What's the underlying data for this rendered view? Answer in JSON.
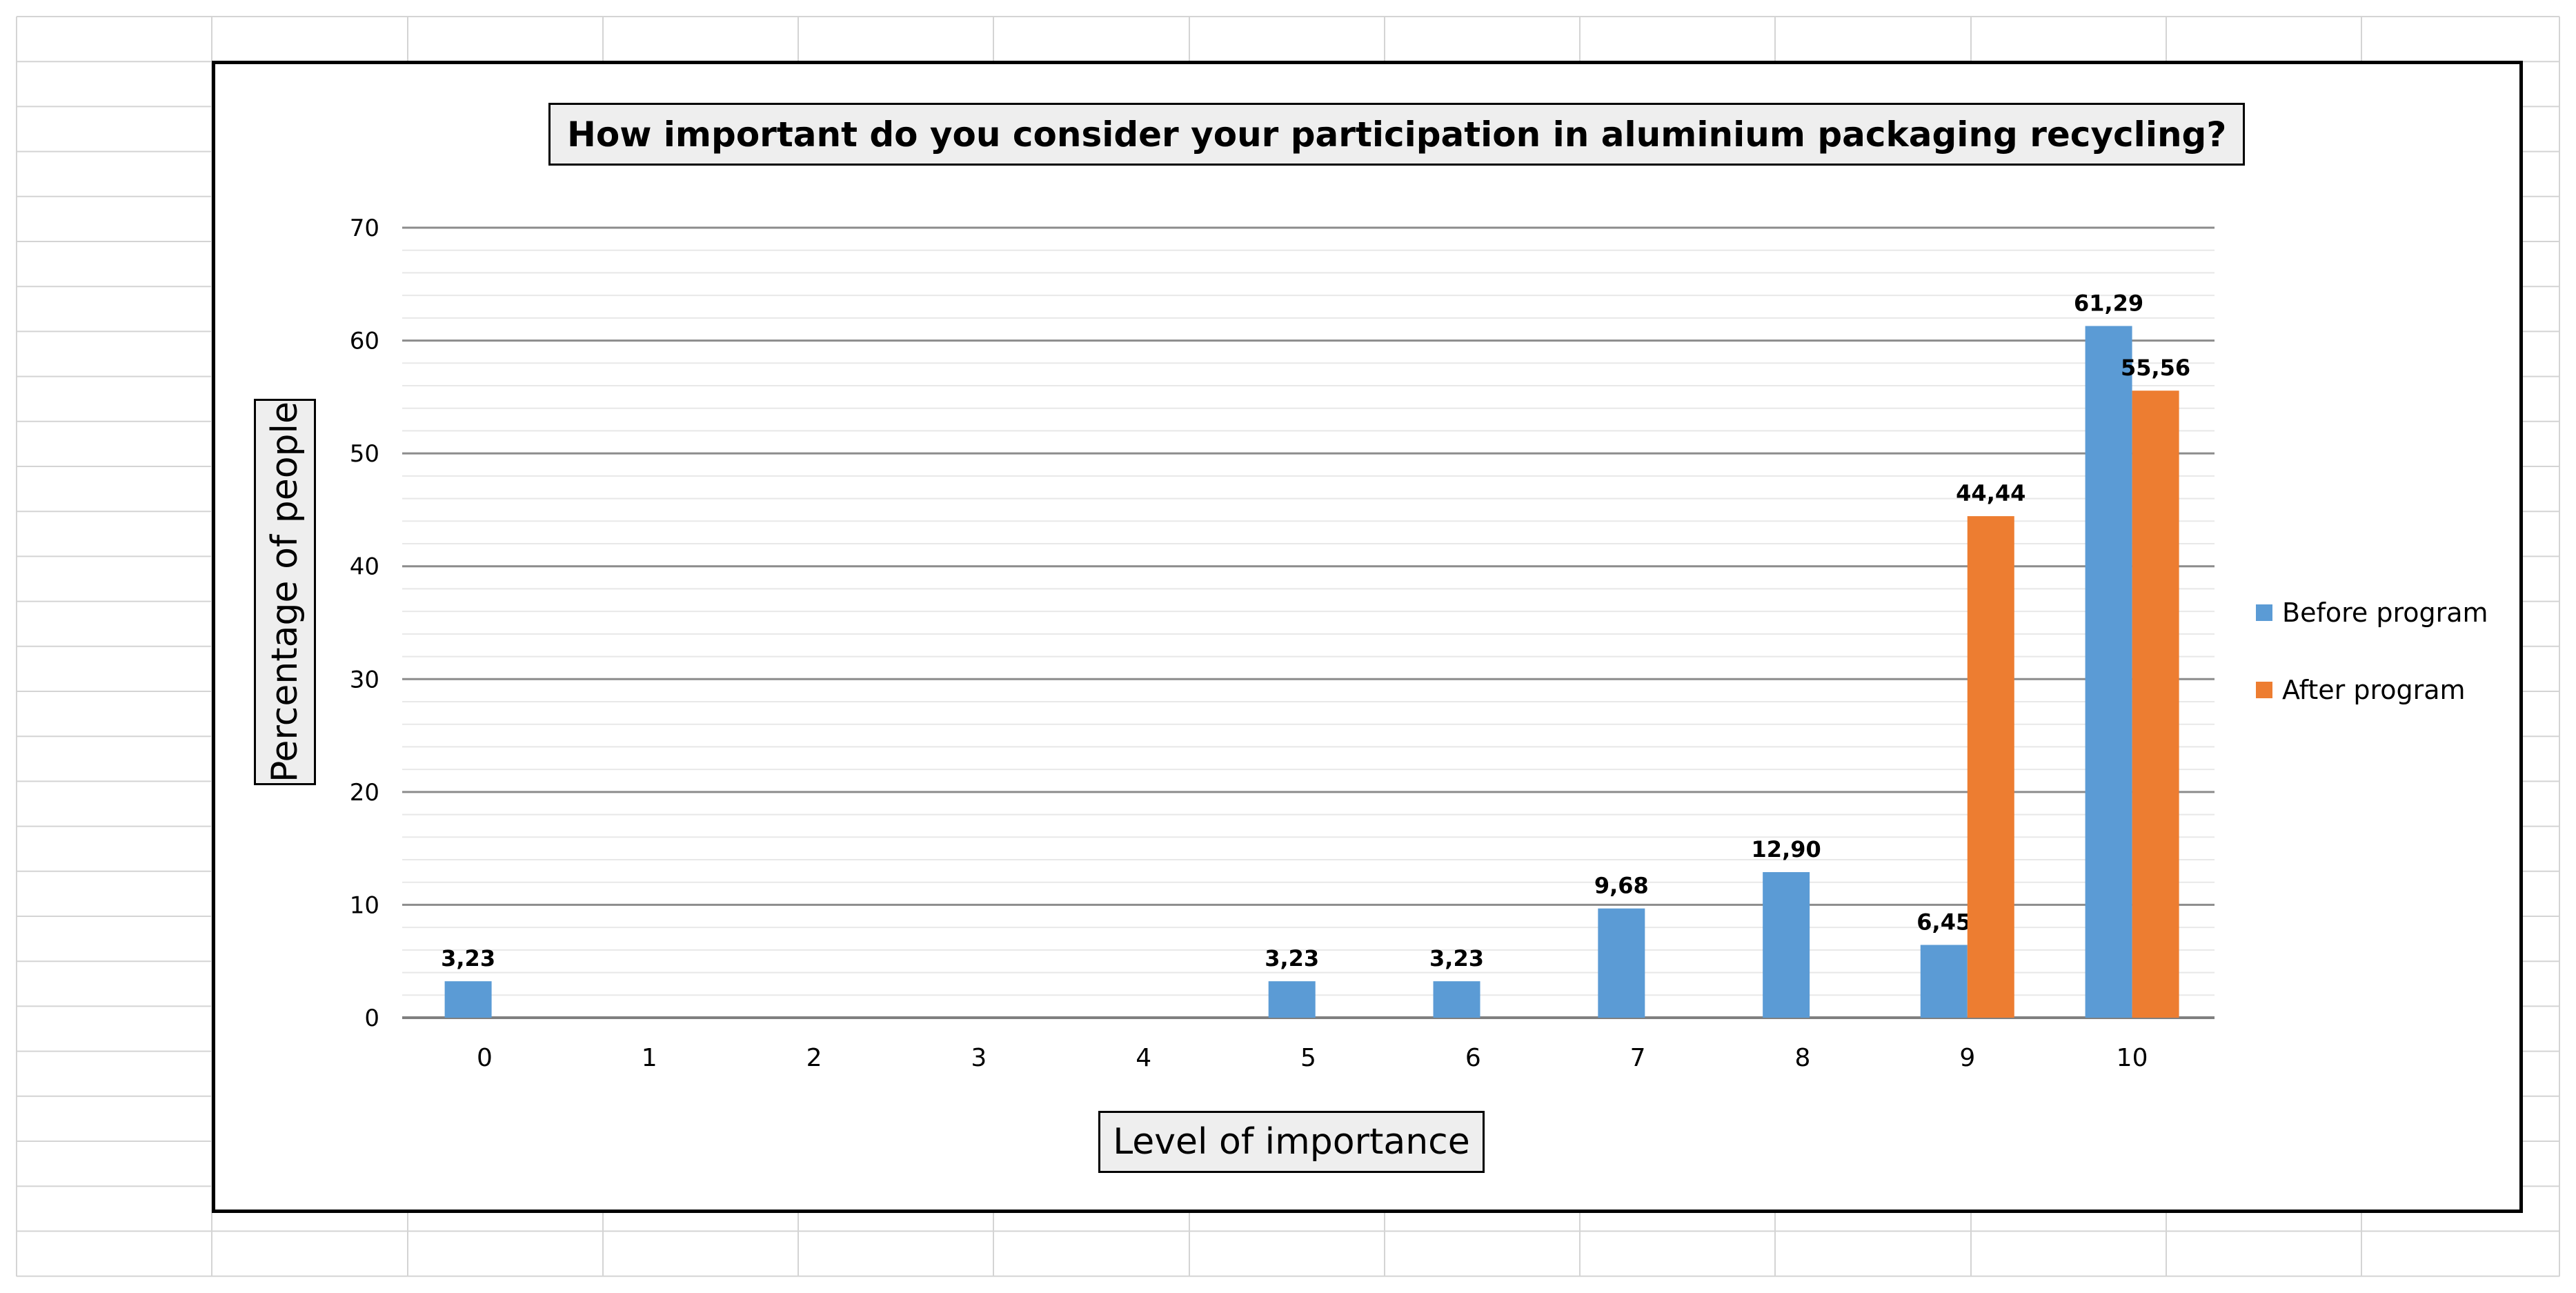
{
  "chart_data": {
    "type": "bar",
    "title": "How important do you consider your participation in aluminium packaging recycling?",
    "xlabel": "Level of importance",
    "ylabel": "Percentage of people",
    "categories": [
      "0",
      "1",
      "2",
      "3",
      "4",
      "5",
      "6",
      "7",
      "8",
      "9",
      "10"
    ],
    "ylim": [
      0,
      70
    ],
    "yticks": [
      "0",
      "10",
      "20",
      "30",
      "40",
      "50",
      "60",
      "70"
    ],
    "grid": true,
    "legend_position": "right",
    "series": [
      {
        "name": "Before program",
        "color": "#5B9BD5",
        "values": [
          3.23,
          0,
          0,
          0,
          0,
          3.23,
          3.23,
          9.68,
          12.9,
          6.45,
          61.29
        ],
        "labels": [
          "3,23",
          "",
          "",
          "",
          "",
          "3,23",
          "3,23",
          "9,68",
          "12,90",
          "6,45",
          "61,29"
        ]
      },
      {
        "name": "After program",
        "color": "#ED7D31",
        "values": [
          0,
          0,
          0,
          0,
          0,
          0,
          0,
          0,
          0,
          44.44,
          55.56
        ],
        "labels": [
          "",
          "",
          "",
          "",
          "",
          "",
          "",
          "",
          "",
          "44,44",
          "55,56"
        ]
      }
    ]
  }
}
